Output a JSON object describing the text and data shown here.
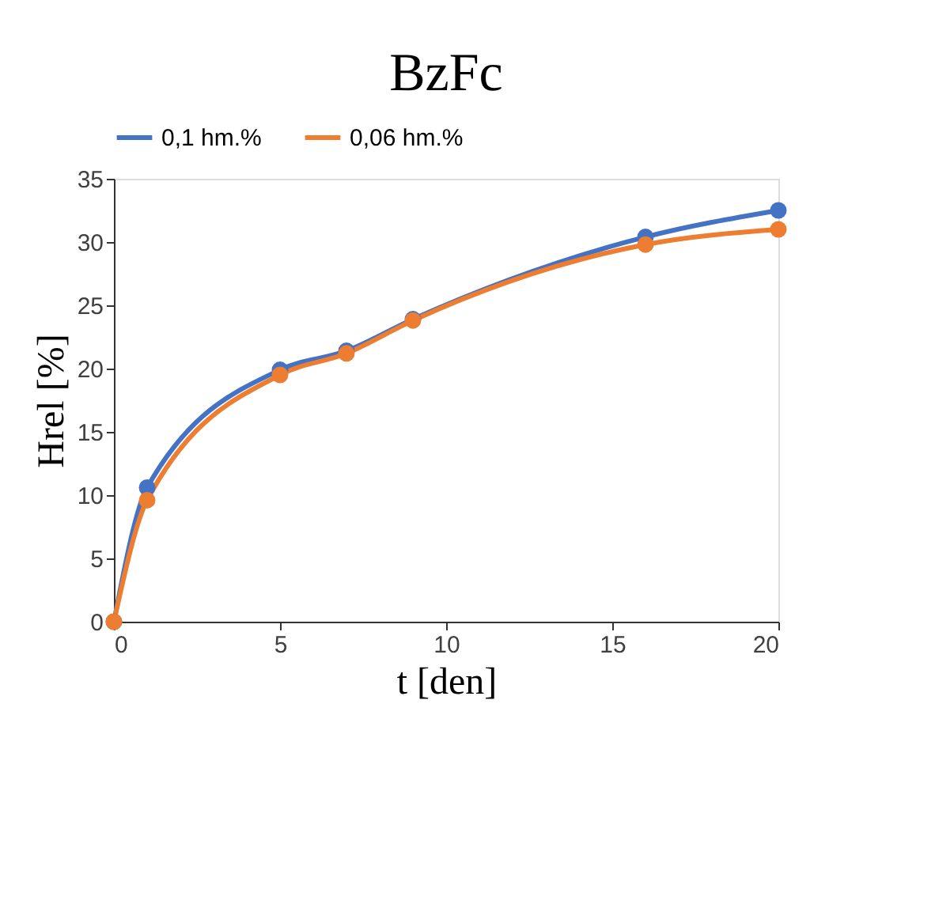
{
  "chart_data": {
    "type": "line",
    "title": "BzFc",
    "xlabel": "t [den]",
    "ylabel": "Hrel [%]",
    "x": [
      0,
      1,
      5,
      7,
      9,
      16,
      20
    ],
    "series": [
      {
        "name": "0,1 hm.%",
        "color": "#4472c4",
        "values": [
          0,
          10.6,
          19.9,
          21.4,
          23.9,
          30.4,
          32.5
        ]
      },
      {
        "name": "0,06 hm.%",
        "color": "#ed7d31",
        "values": [
          0,
          9.6,
          19.5,
          21.2,
          23.8,
          29.8,
          31.0
        ]
      }
    ],
    "xlim": [
      0,
      20
    ],
    "xticks": [
      0,
      5,
      10,
      15,
      20
    ],
    "ylim": [
      0,
      35
    ],
    "yticks": [
      0,
      5,
      10,
      15,
      20,
      25,
      30,
      35
    ],
    "grid": false,
    "legend": "top",
    "marker": "circle",
    "line_style": "solid"
  }
}
